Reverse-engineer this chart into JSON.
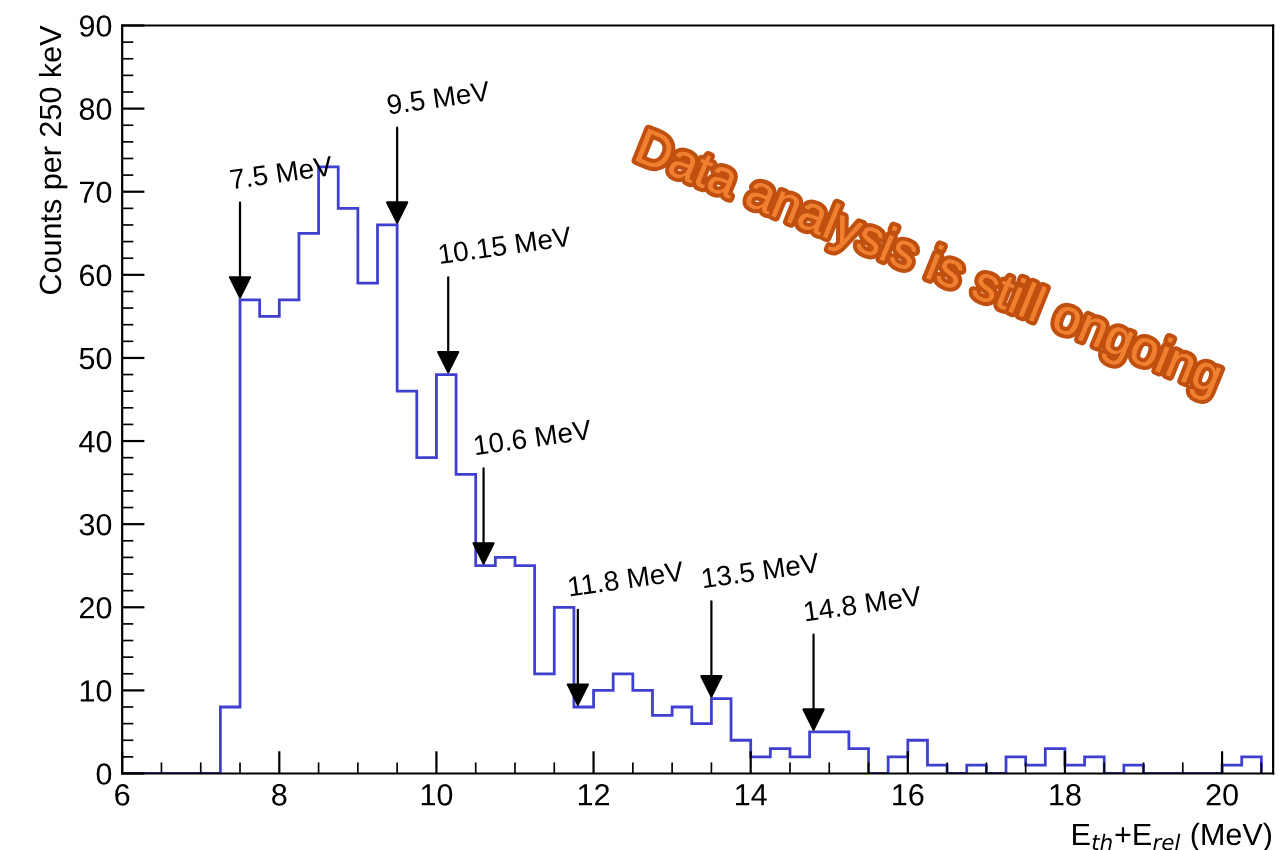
{
  "chart_data": {
    "type": "histogram",
    "xlabel": "E$_{th}$+E$_{rel}$ (MeV)",
    "ylabel": "Counts per 250 keV",
    "bins": [
      6,
      6.25,
      6.5,
      6.75,
      7,
      7.25,
      7.5,
      7.75,
      8,
      8.25,
      8.5,
      8.75,
      9,
      9.25,
      9.5,
      9.75,
      10,
      10.25,
      10.5,
      10.75,
      11,
      11.25,
      11.5,
      11.75,
      12,
      12.25,
      12.5,
      12.75,
      13,
      13.25,
      13.5,
      13.75,
      14,
      14.25,
      14.5,
      14.75,
      15,
      15.25,
      15.5,
      15.75,
      16,
      16.25,
      16.5,
      16.75,
      17,
      17.25,
      17.5,
      17.75,
      18,
      18.25,
      18.5,
      18.75,
      19,
      19.25,
      19.5,
      19.75,
      20,
      20.25,
      20.5
    ],
    "values": [
      0,
      0,
      0,
      0,
      0,
      8,
      57,
      55,
      57,
      65,
      73,
      68,
      59,
      66,
      46,
      38,
      48,
      36,
      25,
      26,
      25,
      12,
      20,
      8,
      10,
      12,
      10,
      7,
      8,
      6,
      9,
      4,
      2,
      3,
      2,
      5,
      5,
      3,
      0,
      2,
      4,
      1,
      0,
      1,
      0,
      2,
      1,
      3,
      1,
      2,
      0,
      1,
      0,
      0,
      0,
      0,
      1,
      2
    ],
    "color": "#4040d0",
    "xlim": [
      6,
      20.65
    ],
    "ylim": [
      0,
      90
    ],
    "xticks": [
      6,
      8,
      10,
      12,
      14,
      16,
      18,
      20
    ],
    "yticks": [
      0,
      10,
      20,
      30,
      40,
      50,
      60,
      70,
      80,
      90
    ],
    "grid": false,
    "annotations": [
      {
        "text": "7.5 MeV",
        "x": 7.5,
        "y": 57
      },
      {
        "text": "9.5 MeV",
        "x": 9.5,
        "y": 66
      },
      {
        "text": "10.15 MeV",
        "x": 10.15,
        "y": 48
      },
      {
        "text": "10.6 MeV",
        "x": 10.6,
        "y": 25
      },
      {
        "text": "11.8 MeV",
        "x": 11.8,
        "y": 8
      },
      {
        "text": "13.5 MeV",
        "x": 13.5,
        "y": 9
      },
      {
        "text": "14.8 MeV",
        "x": 14.8,
        "y": 5
      },
      "Data analysis is still ongoing"
    ]
  }
}
